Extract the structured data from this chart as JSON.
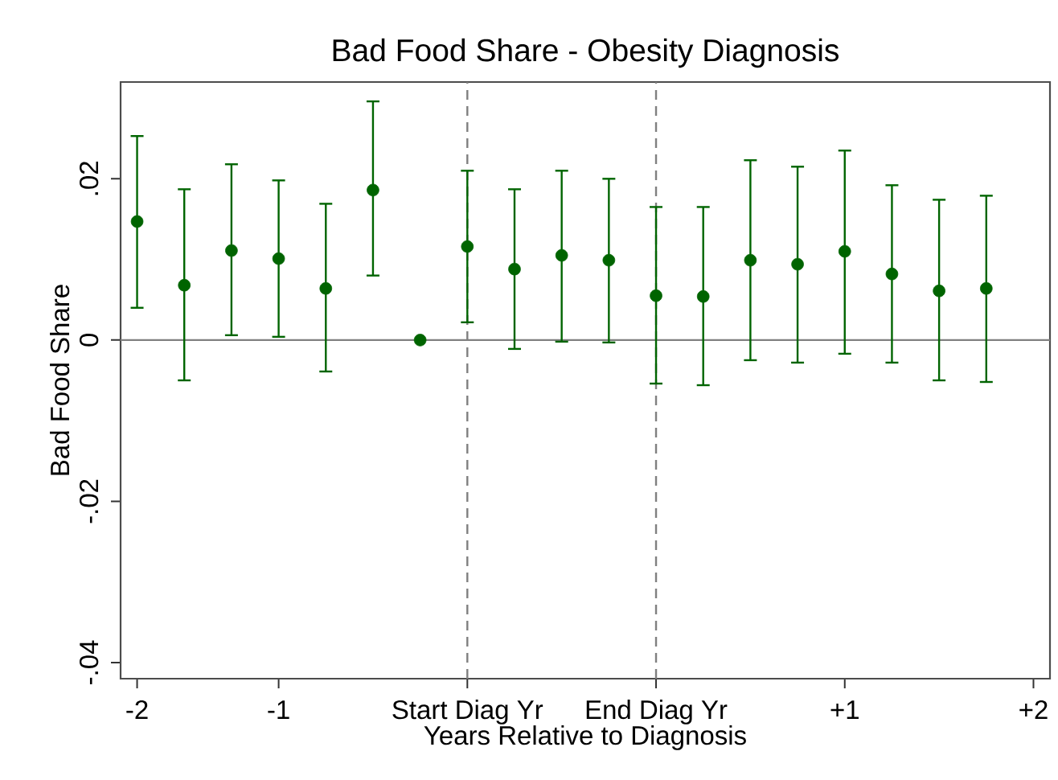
{
  "chart_data": {
    "type": "scatter",
    "title": "Bad Food Share - Obesity Diagnosis",
    "xlabel": "Years Relative to Diagnosis",
    "ylabel": "Bad Food Share",
    "categories": [
      "-2",
      null,
      null,
      "-1",
      null,
      null,
      null,
      "Start Diag Yr",
      null,
      null,
      null,
      "End Diag Yr",
      null,
      null,
      null,
      "+1",
      null,
      null,
      null,
      "+2"
    ],
    "values": [
      0.0147,
      0.0068,
      0.0111,
      0.0101,
      0.0064,
      0.0186,
      0,
      0.0116,
      0.0088,
      0.0105,
      0.0099,
      0.0055,
      0.0054,
      0.0099,
      0.0094,
      0.011,
      0.0082,
      0.0061,
      0.0064,
      null
    ],
    "errors": [
      [
        0.004,
        0.0253
      ],
      [
        -0.005,
        0.0187
      ],
      [
        0.0006,
        0.0218
      ],
      [
        0.0004,
        0.0198
      ],
      [
        -0.0039,
        0.0169
      ],
      [
        0.008,
        0.0296
      ],
      null,
      [
        0.0022,
        0.021
      ],
      [
        -0.0011,
        0.0187
      ],
      [
        -0.0002,
        0.021
      ],
      [
        -0.0003,
        0.02
      ],
      [
        -0.0054,
        0.0165
      ],
      [
        -0.0056,
        0.0165
      ],
      [
        -0.0025,
        0.0223
      ],
      [
        -0.0028,
        0.0215
      ],
      [
        -0.0017,
        0.0235
      ],
      [
        -0.0028,
        0.0192
      ],
      [
        -0.005,
        0.0174
      ],
      [
        -0.0052,
        0.0179
      ],
      null
    ],
    "color": "#006400",
    "marker": "circle",
    "ylim": [
      -0.042,
      0.032
    ],
    "yticks": [
      {
        "value": 0.02,
        "label": ".02"
      },
      {
        "value": 0,
        "label": "0"
      },
      {
        "value": -0.02,
        "label": "-.02"
      },
      {
        "value": -0.04,
        "label": "-.04"
      }
    ],
    "ref_lines": [
      {
        "axis": "y",
        "value": 0,
        "color": "#808080",
        "line_style": "solid"
      },
      {
        "axis": "x",
        "value": "Start Diag Yr",
        "color": "#808080",
        "line_style": "dashed"
      },
      {
        "axis": "x",
        "value": "End Diag Yr",
        "color": "#808080",
        "line_style": "dashed"
      }
    ]
  }
}
